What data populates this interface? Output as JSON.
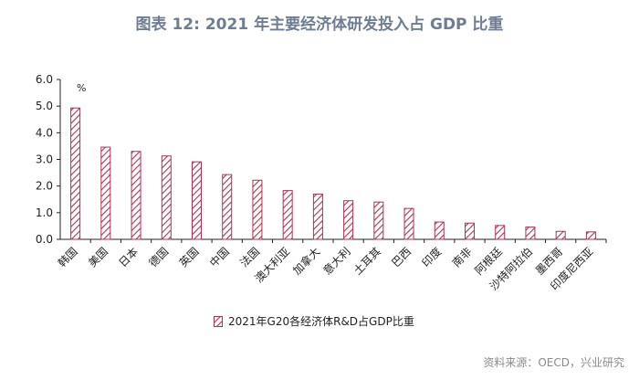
{
  "title": "图表 12: 2021 年主要经济体研发投入占 GDP 比重",
  "source": "资料来源：OECD，兴业研究",
  "colors": {
    "title": "#6e7d92",
    "bar_stroke": "#b2314e",
    "bar_hatch": "#b2314e"
  },
  "chart_data": {
    "type": "bar",
    "title": "",
    "unit_label": "%",
    "xlabel": "",
    "ylabel": "",
    "ylim": [
      0,
      6
    ],
    "yticks": [
      "0.0",
      "1.0",
      "2.0",
      "3.0",
      "4.0",
      "5.0",
      "6.0"
    ],
    "categories": [
      "韩国",
      "美国",
      "日本",
      "德国",
      "英国",
      "中国",
      "法国",
      "澳大利亚",
      "加拿大",
      "意大利",
      "土耳其",
      "巴西",
      "印度",
      "南非",
      "阿根廷",
      "沙特阿拉伯",
      "墨西哥",
      "印度尼西亚"
    ],
    "series": [
      {
        "name": "2021年G20各经济体R&D占GDP比重",
        "values": [
          4.93,
          3.46,
          3.3,
          3.13,
          2.91,
          2.43,
          2.22,
          1.83,
          1.7,
          1.45,
          1.4,
          1.16,
          0.65,
          0.61,
          0.52,
          0.46,
          0.3,
          0.28
        ]
      }
    ],
    "legend": "bottom-center"
  }
}
